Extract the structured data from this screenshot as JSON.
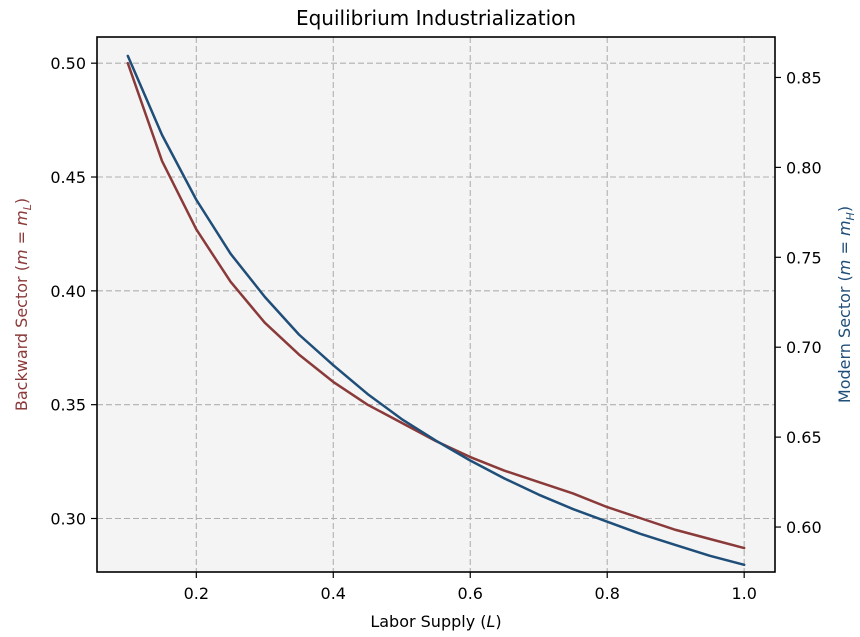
{
  "chart_data": {
    "type": "line",
    "title": "Equilibrium Industrialization",
    "xlabel": {
      "text": "Labor Supply (",
      "var": "L",
      "close": ")"
    },
    "ylabel_left": {
      "text": "Backward Sector (",
      "math": "m = m",
      "sub": "L",
      "close": ")"
    },
    "ylabel_right": {
      "text": "Modern Sector (",
      "math": "m = m",
      "sub": "H",
      "close": ")"
    },
    "xlim": [
      0.055,
      1.045
    ],
    "ylim_left": [
      0.2765,
      0.5115
    ],
    "ylim_right": [
      0.575,
      0.8725
    ],
    "x_ticks": [
      0.2,
      0.4,
      0.6,
      0.8,
      1.0
    ],
    "x_tick_labels": [
      "0.2",
      "0.4",
      "0.6",
      "0.8",
      "1.0"
    ],
    "y_left_ticks": [
      0.3,
      0.35,
      0.4,
      0.45,
      0.5
    ],
    "y_left_tick_labels": [
      "0.30",
      "0.35",
      "0.40",
      "0.45",
      "0.50"
    ],
    "y_right_ticks": [
      0.6,
      0.65,
      0.7,
      0.75,
      0.8,
      0.85
    ],
    "y_right_tick_labels": [
      "0.60",
      "0.65",
      "0.70",
      "0.75",
      "0.80",
      "0.85"
    ],
    "grid": true,
    "colors": {
      "backward": "#8b3a3a",
      "modern": "#1f4e79",
      "plot_bg": "#f4f4f4",
      "grid": "#b0b0b0"
    },
    "series": [
      {
        "axis": "left",
        "color": "#8b3a3a",
        "x": [
          0.1,
          0.15,
          0.2,
          0.25,
          0.3,
          0.35,
          0.4,
          0.45,
          0.5,
          0.55,
          0.6,
          0.65,
          0.7,
          0.75,
          0.8,
          0.85,
          0.9,
          0.95,
          1.0
        ],
        "values": [
          0.5,
          0.457,
          0.427,
          0.404,
          0.386,
          0.372,
          0.36,
          0.35,
          0.342,
          0.334,
          0.327,
          0.321,
          0.316,
          0.311,
          0.305,
          0.3,
          0.295,
          0.291,
          0.287
        ]
      },
      {
        "axis": "right",
        "color": "#1f4e79",
        "x": [
          0.1,
          0.15,
          0.2,
          0.25,
          0.3,
          0.35,
          0.4,
          0.45,
          0.5,
          0.55,
          0.6,
          0.65,
          0.7,
          0.75,
          0.8,
          0.85,
          0.9,
          0.95,
          1.0
        ],
        "values": [
          0.862,
          0.818,
          0.782,
          0.752,
          0.728,
          0.707,
          0.69,
          0.674,
          0.66,
          0.648,
          0.637,
          0.627,
          0.618,
          0.61,
          0.603,
          0.596,
          0.59,
          0.584,
          0.579
        ]
      }
    ]
  }
}
